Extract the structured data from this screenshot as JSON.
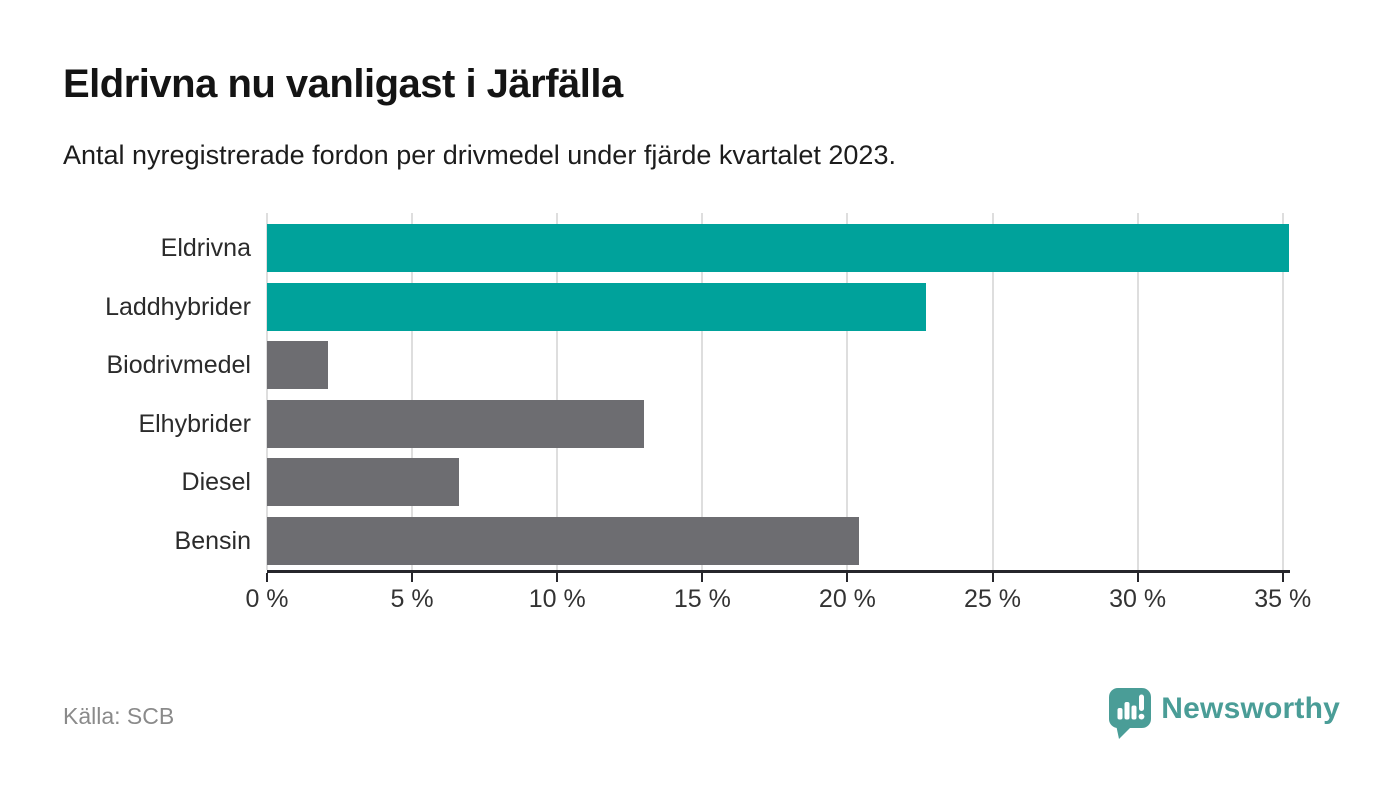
{
  "header": {
    "title": "Eldrivna nu vanligast i Järfälla",
    "subtitle": "Antal nyregistrerade fordon per drivmedel under fjärde kvartalet 2023."
  },
  "chart_data": {
    "type": "bar",
    "orientation": "horizontal",
    "title": "Eldrivna nu vanligast i Järfälla",
    "subtitle": "Antal nyregistrerade fordon per drivmedel under fjärde kvartalet 2023.",
    "unit": "%",
    "categories": [
      "Eldrivna",
      "Laddhybrider",
      "Biodrivmedel",
      "Elhybrider",
      "Diesel",
      "Bensin"
    ],
    "values": [
      35.2,
      22.7,
      2.1,
      13.0,
      6.6,
      20.4
    ],
    "bar_colors": [
      "#00a29b",
      "#00a29b",
      "#6d6d71",
      "#6d6d71",
      "#6d6d71",
      "#6d6d71"
    ],
    "xlim": [
      0,
      35.25
    ],
    "x_tick_values": [
      0,
      5,
      10,
      15,
      20,
      25,
      30,
      35
    ],
    "x_tick_labels": [
      "0 %",
      "5 %",
      "10 %",
      "15 %",
      "20 %",
      "25 %",
      "30 %",
      "35 %"
    ],
    "grid": "vertical-gridlines",
    "legend": "none"
  },
  "footer": {
    "source": "Källa: SCB",
    "brand": "Newsworthy"
  },
  "colors": {
    "accent_teal": "#00a29b",
    "neutral_gray": "#6d6d71",
    "logo_teal": "#4a9d97",
    "axis": "#26262b",
    "gridline": "#dedede"
  }
}
